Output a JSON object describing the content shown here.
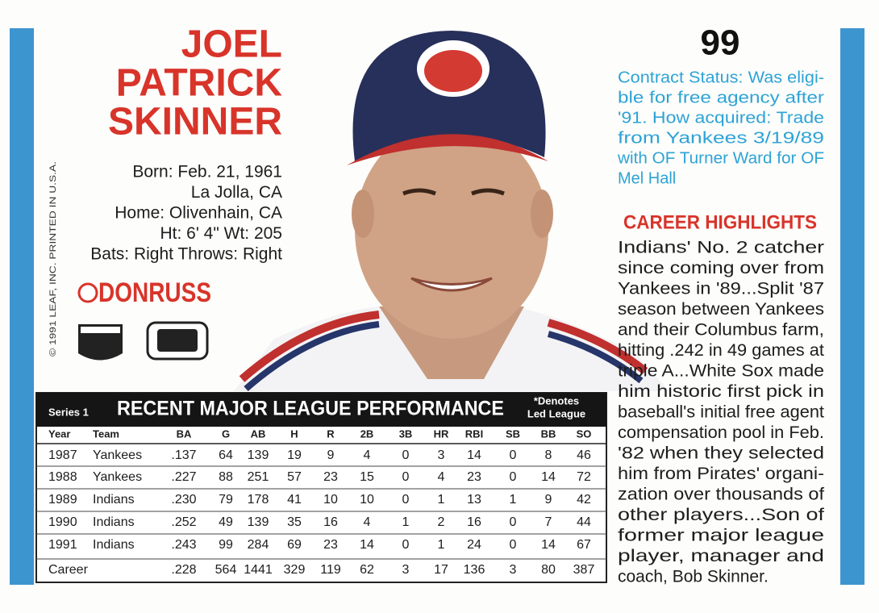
{
  "card_number": "99",
  "name": [
    "JOEL",
    "PATRICK",
    "SKINNER"
  ],
  "bio": [
    "Born: Feb. 21, 1961",
    "La Jolla, CA",
    "Home: Olivenhain, CA",
    "Ht: 6' 4\"   Wt: 205",
    "Bats: Right  Throws: Right"
  ],
  "brand": "DONRUSS",
  "copyright": "© 1991 LEAF, INC. PRINTED IN U.S.A.",
  "contract": [
    "Contract Status: Was eligi-",
    "ble for free agency after",
    "'91. How acquired: Trade",
    "from Yankees 3/19/89",
    "with OF Turner Ward for OF",
    "Mel Hall"
  ],
  "highlights_title": "CAREER HIGHLIGHTS",
  "highlights": [
    "Indians' No. 2 catcher",
    "since coming over from",
    "Yankees in '89...Split '87",
    "season between Yankees",
    "and their Columbus farm,",
    "hitting .242 in 49 games at",
    "triple A...White Sox made",
    "him historic first pick in",
    "baseball's initial free agent",
    "compensation pool in Feb.",
    "'82 when they selected",
    "him from Pirates' organi-",
    "zation over thousands of",
    "other players...Son of",
    "former major league",
    "player, manager and",
    "coach, Bob Skinner."
  ],
  "table": {
    "series": "Series 1",
    "title": "RECENT MAJOR LEAGUE PERFORMANCE",
    "note": [
      "*Denotes",
      "Led League"
    ],
    "header": [
      "Year",
      "Team",
      "BA",
      "G",
      "AB",
      "H",
      "R",
      "2B",
      "3B",
      "HR",
      "RBI",
      "SB",
      "BB",
      "SO"
    ],
    "rows": [
      [
        "1987",
        "Yankees",
        ".137",
        "64",
        "139",
        "19",
        "9",
        "4",
        "0",
        "3",
        "14",
        "0",
        "8",
        "46"
      ],
      [
        "1988",
        "Yankees",
        ".227",
        "88",
        "251",
        "57",
        "23",
        "15",
        "0",
        "4",
        "23",
        "0",
        "14",
        "72"
      ],
      [
        "1989",
        "Indians",
        ".230",
        "79",
        "178",
        "41",
        "10",
        "10",
        "0",
        "1",
        "13",
        "1",
        "9",
        "42"
      ],
      [
        "1990",
        "Indians",
        ".252",
        "49",
        "139",
        "35",
        "16",
        "4",
        "1",
        "2",
        "16",
        "0",
        "7",
        "44"
      ],
      [
        "1991",
        "Indians",
        ".243",
        "99",
        "284",
        "69",
        "23",
        "14",
        "0",
        "1",
        "24",
        "0",
        "14",
        "67"
      ],
      [
        "Career",
        "",
        ".228",
        "564",
        "1441",
        "329",
        "119",
        "62",
        "3",
        "17",
        "136",
        "3",
        "80",
        "387"
      ]
    ]
  }
}
